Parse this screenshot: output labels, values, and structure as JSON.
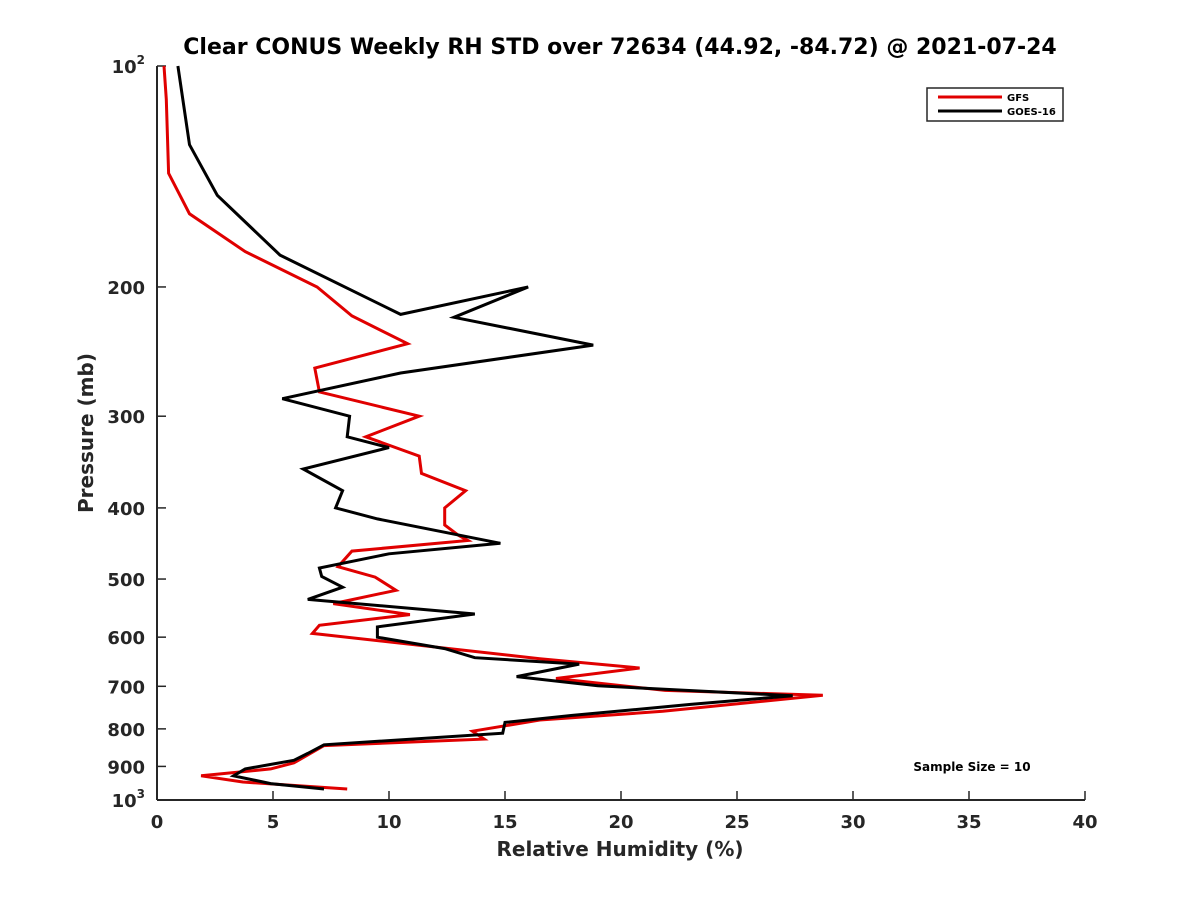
{
  "chart_data": {
    "type": "line",
    "title": "Clear CONUS Weekly RH STD over 72634 (44.92, -84.72) @ 2021-07-24",
    "xlabel": "Relative Humidity (%)",
    "ylabel": "Pressure (mb)",
    "xlim": [
      0,
      40
    ],
    "ylim": [
      100,
      1000
    ],
    "yscale": "log",
    "y_reversed": true,
    "grid": false,
    "x_ticks": [
      0,
      5,
      10,
      15,
      20,
      25,
      30,
      35,
      40
    ],
    "x_tick_labels": [
      "0",
      "5",
      "10",
      "15",
      "20",
      "25",
      "30",
      "35",
      "40"
    ],
    "y_ticks": [
      100,
      200,
      300,
      400,
      500,
      600,
      700,
      800,
      900,
      1000
    ],
    "y_tick_labels": [
      "10^2",
      "200",
      "300",
      "400",
      "500",
      "600",
      "700",
      "800",
      "900",
      "10^3"
    ],
    "legend": {
      "position": "top-right",
      "entries": [
        "GFS",
        "GOES-16"
      ]
    },
    "annotation": "Sample Size = 10",
    "series": [
      {
        "name": "GFS",
        "color": "#e00000",
        "points": [
          [
            0.3,
            100
          ],
          [
            0.4,
            111
          ],
          [
            0.5,
            140
          ],
          [
            1.4,
            159
          ],
          [
            3.8,
            179
          ],
          [
            6.9,
            200
          ],
          [
            8.4,
            219
          ],
          [
            10.8,
            239
          ],
          [
            6.8,
            258
          ],
          [
            7.0,
            278
          ],
          [
            11.3,
            300
          ],
          [
            9.0,
            320
          ],
          [
            11.3,
            340
          ],
          [
            11.4,
            359
          ],
          [
            13.3,
            379
          ],
          [
            12.4,
            400
          ],
          [
            12.4,
            422
          ],
          [
            13.0,
            436
          ],
          [
            13.4,
            443
          ],
          [
            8.4,
            458
          ],
          [
            7.8,
            481
          ],
          [
            9.4,
            497
          ],
          [
            10.3,
            518
          ],
          [
            7.6,
            540
          ],
          [
            10.9,
            559
          ],
          [
            7.0,
            578
          ],
          [
            6.7,
            593
          ],
          [
            16.5,
            642
          ],
          [
            20.8,
            661
          ],
          [
            17.2,
            683
          ],
          [
            21.9,
            709
          ],
          [
            28.7,
            720
          ],
          [
            21.8,
            757
          ],
          [
            16.5,
            778
          ],
          [
            13.6,
            806
          ],
          [
            14.1,
            826
          ],
          [
            7.2,
            843
          ],
          [
            5.9,
            890
          ],
          [
            4.9,
            907
          ],
          [
            1.9,
            927
          ],
          [
            3.7,
            945
          ],
          [
            8.2,
            966
          ]
        ]
      },
      {
        "name": "GOES-16",
        "color": "#000000",
        "points": [
          [
            0.9,
            100
          ],
          [
            1.4,
            128
          ],
          [
            2.6,
            150
          ],
          [
            5.3,
            181
          ],
          [
            10.5,
            218
          ],
          [
            16.0,
            200
          ],
          [
            12.8,
            220
          ],
          [
            18.8,
            240
          ],
          [
            10.5,
            262
          ],
          [
            5.4,
            284
          ],
          [
            8.3,
            300
          ],
          [
            8.2,
            320
          ],
          [
            10.0,
            331
          ],
          [
            6.3,
            354
          ],
          [
            8.0,
            379
          ],
          [
            7.7,
            400
          ],
          [
            9.5,
            414
          ],
          [
            14.8,
            447
          ],
          [
            10.0,
            462
          ],
          [
            7.0,
            483
          ],
          [
            7.1,
            496
          ],
          [
            8.0,
            513
          ],
          [
            6.5,
            533
          ],
          [
            13.7,
            558
          ],
          [
            9.5,
            581
          ],
          [
            9.5,
            600
          ],
          [
            12.4,
            622
          ],
          [
            13.7,
            640
          ],
          [
            18.2,
            653
          ],
          [
            15.5,
            679
          ],
          [
            19.0,
            699
          ],
          [
            27.4,
            721
          ],
          [
            23.0,
            741
          ],
          [
            17.9,
            767
          ],
          [
            15.0,
            784
          ],
          [
            14.9,
            811
          ],
          [
            7.2,
            841
          ],
          [
            6.5,
            864
          ],
          [
            5.9,
            883
          ],
          [
            3.8,
            907
          ],
          [
            3.3,
            927
          ],
          [
            4.9,
            950
          ],
          [
            7.2,
            966
          ]
        ]
      }
    ]
  }
}
